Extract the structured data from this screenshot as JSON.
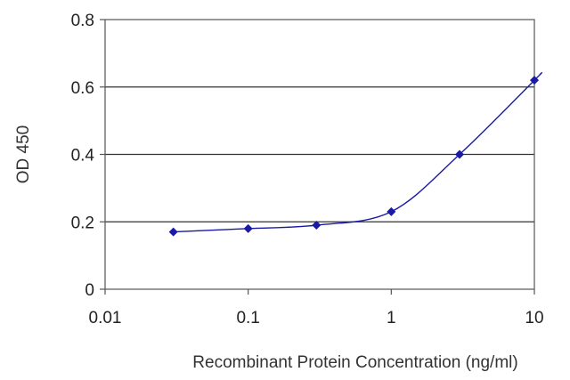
{
  "chart_data": {
    "type": "line",
    "title": "",
    "xlabel": "Recombinant Protein Concentration (ng/ml)",
    "ylabel": "OD 450",
    "x_scale": "log",
    "xlim": [
      0.01,
      10
    ],
    "ylim": [
      0,
      0.8
    ],
    "x_ticks": [
      {
        "value": 0.01,
        "label": "0.01"
      },
      {
        "value": 0.1,
        "label": "0.1"
      },
      {
        "value": 1,
        "label": "1"
      },
      {
        "value": 10,
        "label": "10"
      }
    ],
    "y_ticks": [
      {
        "value": 0,
        "label": "0"
      },
      {
        "value": 0.2,
        "label": "0.2"
      },
      {
        "value": 0.4,
        "label": "0.4"
      },
      {
        "value": 0.6,
        "label": "0.6"
      },
      {
        "value": 0.8,
        "label": "0.8"
      }
    ],
    "grid": "horizontal",
    "legend": "none",
    "series": [
      {
        "x": [
          0.03,
          0.1,
          0.3,
          1,
          3,
          10
        ],
        "y": [
          0.17,
          0.18,
          0.19,
          0.23,
          0.4,
          0.62
        ],
        "color": "#1a1aa6",
        "marker": "diamond"
      }
    ]
  }
}
